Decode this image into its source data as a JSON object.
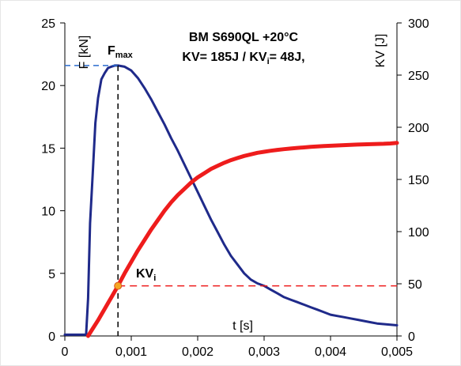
{
  "chart_data": {
    "type": "line",
    "title_line1": "BM S690QL +20°C",
    "title_line2": "KV= 185J / KV",
    "title_line2_sub": "i",
    "title_line2_end": "= 48J,",
    "xlabel": "t [s]",
    "ylabel_left": "F [kN]",
    "ylabel_right": "KV [J]",
    "xlim": [
      0,
      0.005
    ],
    "ylim_left": [
      0,
      25
    ],
    "ylim_right": [
      0,
      300
    ],
    "x_ticks": [
      "0",
      "0,001",
      "0,002",
      "0,003",
      "0,004",
      "0,005"
    ],
    "y_ticks_left": [
      "0",
      "5",
      "10",
      "15",
      "20",
      "25"
    ],
    "y_ticks_right": [
      "0",
      "50",
      "100",
      "150",
      "200",
      "250",
      "300"
    ],
    "grid": false,
    "colors": {
      "force": "#1f2a8a",
      "energy": "#ee1c1c",
      "dashed_ref": "#000000",
      "dashed_kvi": "#ee1c1c",
      "marker": "#f5a623"
    },
    "annotations": {
      "fmax_label": "F",
      "fmax_sub": "max",
      "kvi_label": "KV",
      "kvi_sub": "i",
      "fmax_value": 21.6,
      "fmax_time": 0.0008,
      "kvi_value": 48,
      "kvi_time": 0.0008
    },
    "series": [
      {
        "axis": "left",
        "x": [
          0,
          0.0002,
          0.00032,
          0.00035,
          0.00038,
          0.00042,
          0.00046,
          0.0005,
          0.00055,
          0.0006,
          0.00065,
          0.0007,
          0.00075,
          0.0008,
          0.0009,
          0.001,
          0.0011,
          0.0012,
          0.0013,
          0.0014,
          0.0015,
          0.0016,
          0.0017,
          0.0018,
          0.0019,
          0.002,
          0.0021,
          0.0022,
          0.0023,
          0.0024,
          0.0025,
          0.0026,
          0.0027,
          0.0028,
          0.0029,
          0.003,
          0.0031,
          0.0032,
          0.0033,
          0.0034,
          0.0035,
          0.0036,
          0.0037,
          0.0038,
          0.0039,
          0.004,
          0.0041,
          0.0042,
          0.0043,
          0.0044,
          0.0045,
          0.0046,
          0.0047,
          0.0048,
          0.0049,
          0.005
        ],
        "values": [
          0.1,
          0.1,
          0.1,
          3,
          9,
          13,
          17,
          19,
          20.5,
          21,
          21.4,
          21.5,
          21.6,
          21.6,
          21.5,
          21.2,
          20.6,
          19.8,
          18.9,
          17.9,
          16.9,
          15.8,
          14.8,
          13.7,
          12.6,
          11.5,
          10.4,
          9.3,
          8.3,
          7.3,
          6.4,
          5.7,
          5.0,
          4.5,
          4.2,
          4.0,
          3.7,
          3.4,
          3.1,
          2.9,
          2.7,
          2.5,
          2.3,
          2.1,
          1.9,
          1.7,
          1.6,
          1.5,
          1.4,
          1.3,
          1.2,
          1.1,
          1.0,
          0.95,
          0.9,
          0.85
        ]
      },
      {
        "axis": "right",
        "x": [
          0.00035,
          0.0004,
          0.0005,
          0.0006,
          0.0007,
          0.0008,
          0.0009,
          0.001,
          0.0011,
          0.0012,
          0.0013,
          0.0014,
          0.0015,
          0.0016,
          0.0017,
          0.0018,
          0.0019,
          0.002,
          0.0021,
          0.0022,
          0.0023,
          0.0024,
          0.0025,
          0.0026,
          0.0027,
          0.0028,
          0.0029,
          0.003,
          0.0031,
          0.0032,
          0.0033,
          0.0034,
          0.0035,
          0.0036,
          0.0037,
          0.0038,
          0.0039,
          0.004,
          0.0041,
          0.0042,
          0.0043,
          0.0044,
          0.0045,
          0.0046,
          0.0047,
          0.0048,
          0.0049,
          0.005
        ],
        "values": [
          0,
          5,
          15,
          26,
          37,
          48,
          60,
          71,
          82,
          92,
          102,
          111,
          120,
          128,
          135,
          141,
          147,
          152,
          156,
          160,
          163,
          166,
          168.5,
          170.5,
          172.5,
          174,
          175.5,
          176.5,
          177.5,
          178.3,
          179,
          179.6,
          180.2,
          180.7,
          181.2,
          181.6,
          182,
          182.3,
          182.6,
          182.9,
          183.2,
          183.4,
          183.6,
          183.8,
          184,
          184.2,
          184.5,
          185
        ]
      }
    ]
  }
}
